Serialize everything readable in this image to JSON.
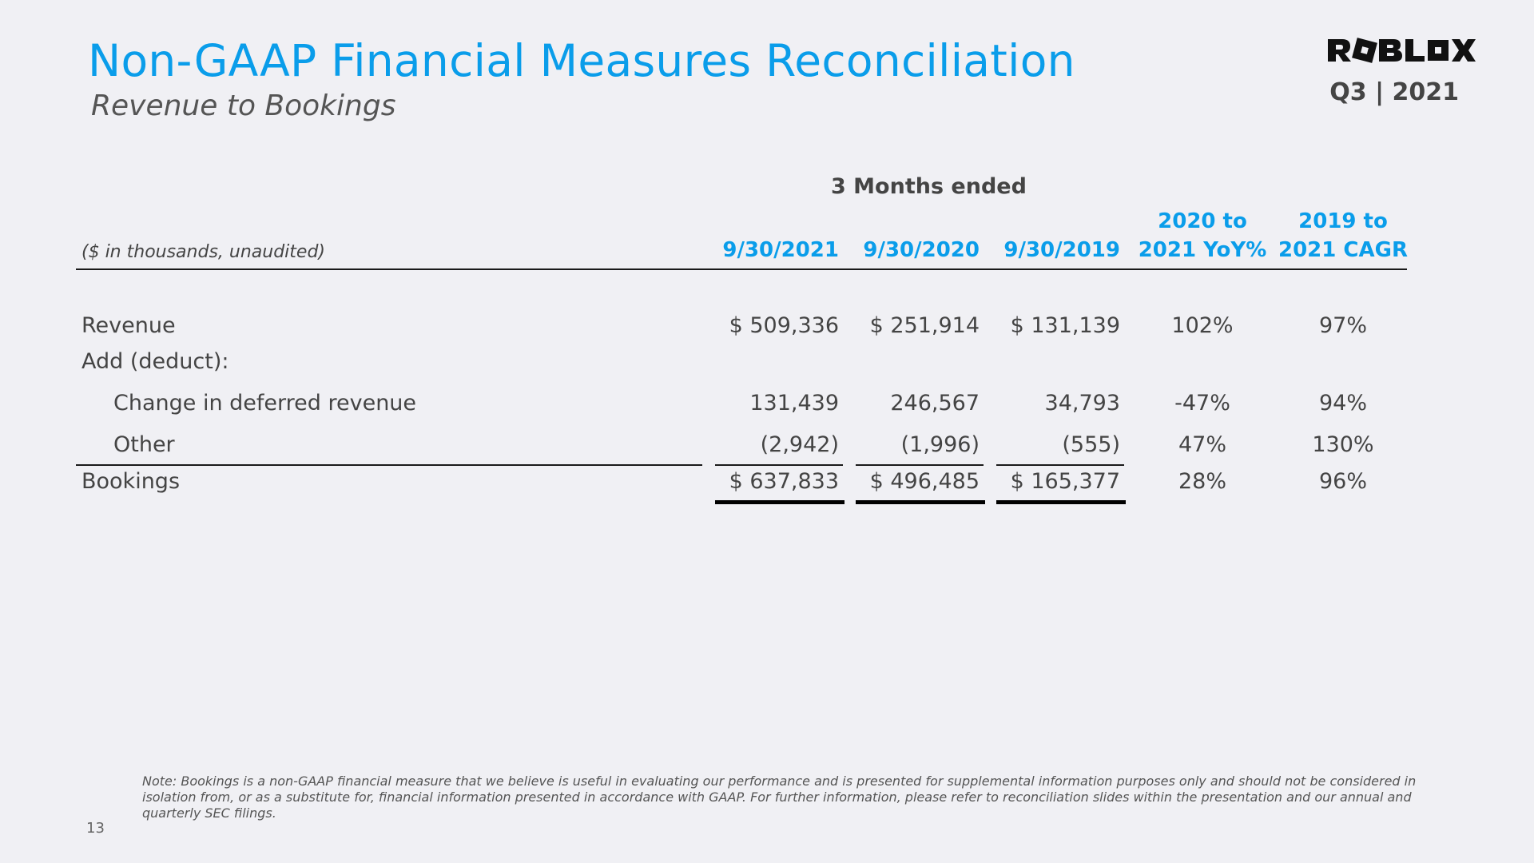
{
  "header": {
    "title": "Non-GAAP Financial Measures Reconciliation",
    "subtitle": "Revenue to Bookings",
    "logo_text": "ROBLOX",
    "logo_icon": "roblox-logo-icon",
    "quarter": "Q3 | 2021"
  },
  "table": {
    "group_header": "3 Months ended",
    "units_label": "($ in thousands, unaudited)",
    "columns": {
      "c1": "9/30/2021",
      "c2": "9/30/2020",
      "c3": "9/30/2019",
      "c4_line1": "2020 to",
      "c4_line2": "2021 YoY%",
      "c5_line1": "2019 to",
      "c5_line2": "2021 CAGR"
    },
    "rows": [
      {
        "label": "Revenue",
        "c1": "$ 509,336",
        "c2": "$ 251,914",
        "c3": "$ 131,139",
        "c4": "102%",
        "c5": "97%"
      },
      {
        "label": "Add (deduct):"
      },
      {
        "label": "Change in deferred revenue",
        "c1": "131,439",
        "c2": "246,567",
        "c3": "34,793",
        "c4": "-47%",
        "c5": "94%"
      },
      {
        "label": "Other",
        "c1": "(2,942)",
        "c2": "(1,996)",
        "c3": "(555)",
        "c4": "47%",
        "c5": "130%"
      },
      {
        "label": "Bookings",
        "c1": "$ 637,833",
        "c2": "$ 496,485",
        "c3": "$ 165,377",
        "c4": "28%",
        "c5": "96%"
      }
    ]
  },
  "footer": {
    "note": "Note: Bookings is a non-GAAP financial measure that we believe is useful in evaluating our performance and is presented for supplemental information purposes only and should not be considered in isolation from, or as a substitute for, financial information presented in accordance with GAAP. For further information, please refer to reconciliation slides within the presentation and our annual and quarterly SEC filings.",
    "page_number": "13"
  },
  "colors": {
    "accent": "#0a9dea",
    "text": "#444444",
    "background": "#f0f0f4"
  }
}
